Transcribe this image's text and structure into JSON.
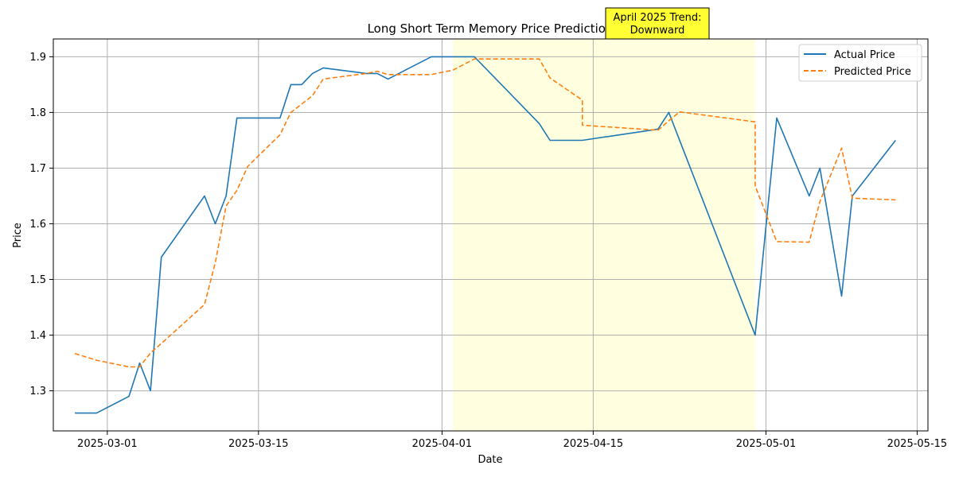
{
  "chart_data": {
    "type": "line",
    "title": "Long Short Term Memory Price Prediction",
    "xlabel": "Date",
    "ylabel": "Price",
    "xlim": [
      "2025-02-24",
      "2025-05-16"
    ],
    "ylim": [
      1.228,
      1.932
    ],
    "x_ticks": [
      "2025-03-01",
      "2025-03-15",
      "2025-04-01",
      "2025-04-15",
      "2025-05-01",
      "2025-05-15"
    ],
    "y_ticks": [
      1.3,
      1.4,
      1.5,
      1.6,
      1.7,
      1.8,
      1.9
    ],
    "y_tick_labels": [
      "1.3",
      "1.4",
      "1.5",
      "1.6",
      "1.7",
      "1.8",
      "1.9"
    ],
    "grid": true,
    "legend_position": "top-right",
    "shaded_region": {
      "from": "2025-04-02",
      "to": "2025-04-30",
      "color": "#ffffe0"
    },
    "annotation": {
      "line1": "April 2025 Trend:",
      "line2": "Downward",
      "x": "2025-04-20",
      "color": "#ffff33"
    },
    "series": [
      {
        "name": "Actual Price",
        "color": "#1f77b4",
        "style": "solid",
        "points": [
          [
            "2025-02-26",
            1.26
          ],
          [
            "2025-02-28",
            1.26
          ],
          [
            "2025-03-03",
            1.29
          ],
          [
            "2025-03-04",
            1.35
          ],
          [
            "2025-03-05",
            1.3
          ],
          [
            "2025-03-06",
            1.54
          ],
          [
            "2025-03-10",
            1.65
          ],
          [
            "2025-03-11",
            1.6
          ],
          [
            "2025-03-12",
            1.65
          ],
          [
            "2025-03-13",
            1.79
          ],
          [
            "2025-03-17",
            1.79
          ],
          [
            "2025-03-18",
            1.85
          ],
          [
            "2025-03-19",
            1.85
          ],
          [
            "2025-03-20",
            1.87
          ],
          [
            "2025-03-21",
            1.88
          ],
          [
            "2025-03-25",
            1.87
          ],
          [
            "2025-03-26",
            1.87
          ],
          [
            "2025-03-27",
            1.86
          ],
          [
            "2025-03-31",
            1.9
          ],
          [
            "2025-04-03",
            1.9
          ],
          [
            "2025-04-04",
            1.9
          ],
          [
            "2025-04-10",
            1.78
          ],
          [
            "2025-04-11",
            1.75
          ],
          [
            "2025-04-14",
            1.75
          ],
          [
            "2025-04-21",
            1.77
          ],
          [
            "2025-04-22",
            1.8
          ],
          [
            "2025-04-30",
            1.4
          ],
          [
            "2025-05-02",
            1.79
          ],
          [
            "2025-05-05",
            1.65
          ],
          [
            "2025-05-06",
            1.7
          ],
          [
            "2025-05-08",
            1.47
          ],
          [
            "2025-05-09",
            1.65
          ],
          [
            "2025-05-13",
            1.75
          ]
        ]
      },
      {
        "name": "Predicted Price",
        "color": "#ff7f0e",
        "style": "dashed",
        "points": [
          [
            "2025-02-26",
            1.367
          ],
          [
            "2025-02-28",
            1.355
          ],
          [
            "2025-03-03",
            1.343
          ],
          [
            "2025-03-04",
            1.343
          ],
          [
            "2025-03-05",
            1.368
          ],
          [
            "2025-03-06",
            1.385
          ],
          [
            "2025-03-10",
            1.455
          ],
          [
            "2025-03-11",
            1.53
          ],
          [
            "2025-03-12",
            1.632
          ],
          [
            "2025-03-13",
            1.66
          ],
          [
            "2025-03-14",
            1.703
          ],
          [
            "2025-03-17",
            1.76
          ],
          [
            "2025-03-18",
            1.8
          ],
          [
            "2025-03-20",
            1.83
          ],
          [
            "2025-03-21",
            1.86
          ],
          [
            "2025-03-25",
            1.87
          ],
          [
            "2025-03-26",
            1.874
          ],
          [
            "2025-03-27",
            1.868
          ],
          [
            "2025-03-31",
            1.868
          ],
          [
            "2025-04-02",
            1.876
          ],
          [
            "2025-04-04",
            1.896
          ],
          [
            "2025-04-10",
            1.896
          ],
          [
            "2025-04-11",
            1.862
          ],
          [
            "2025-04-14",
            1.822
          ],
          [
            "2025-04-14",
            1.777
          ],
          [
            "2025-04-21",
            1.768
          ],
          [
            "2025-04-22",
            1.785
          ],
          [
            "2025-04-23",
            1.801
          ],
          [
            "2025-04-30",
            1.783
          ],
          [
            "2025-04-30",
            1.668
          ],
          [
            "2025-05-02",
            1.568
          ],
          [
            "2025-05-05",
            1.567
          ],
          [
            "2025-05-06",
            1.64
          ],
          [
            "2025-05-08",
            1.736
          ],
          [
            "2025-05-09",
            1.646
          ],
          [
            "2025-05-13",
            1.643
          ]
        ]
      }
    ]
  }
}
